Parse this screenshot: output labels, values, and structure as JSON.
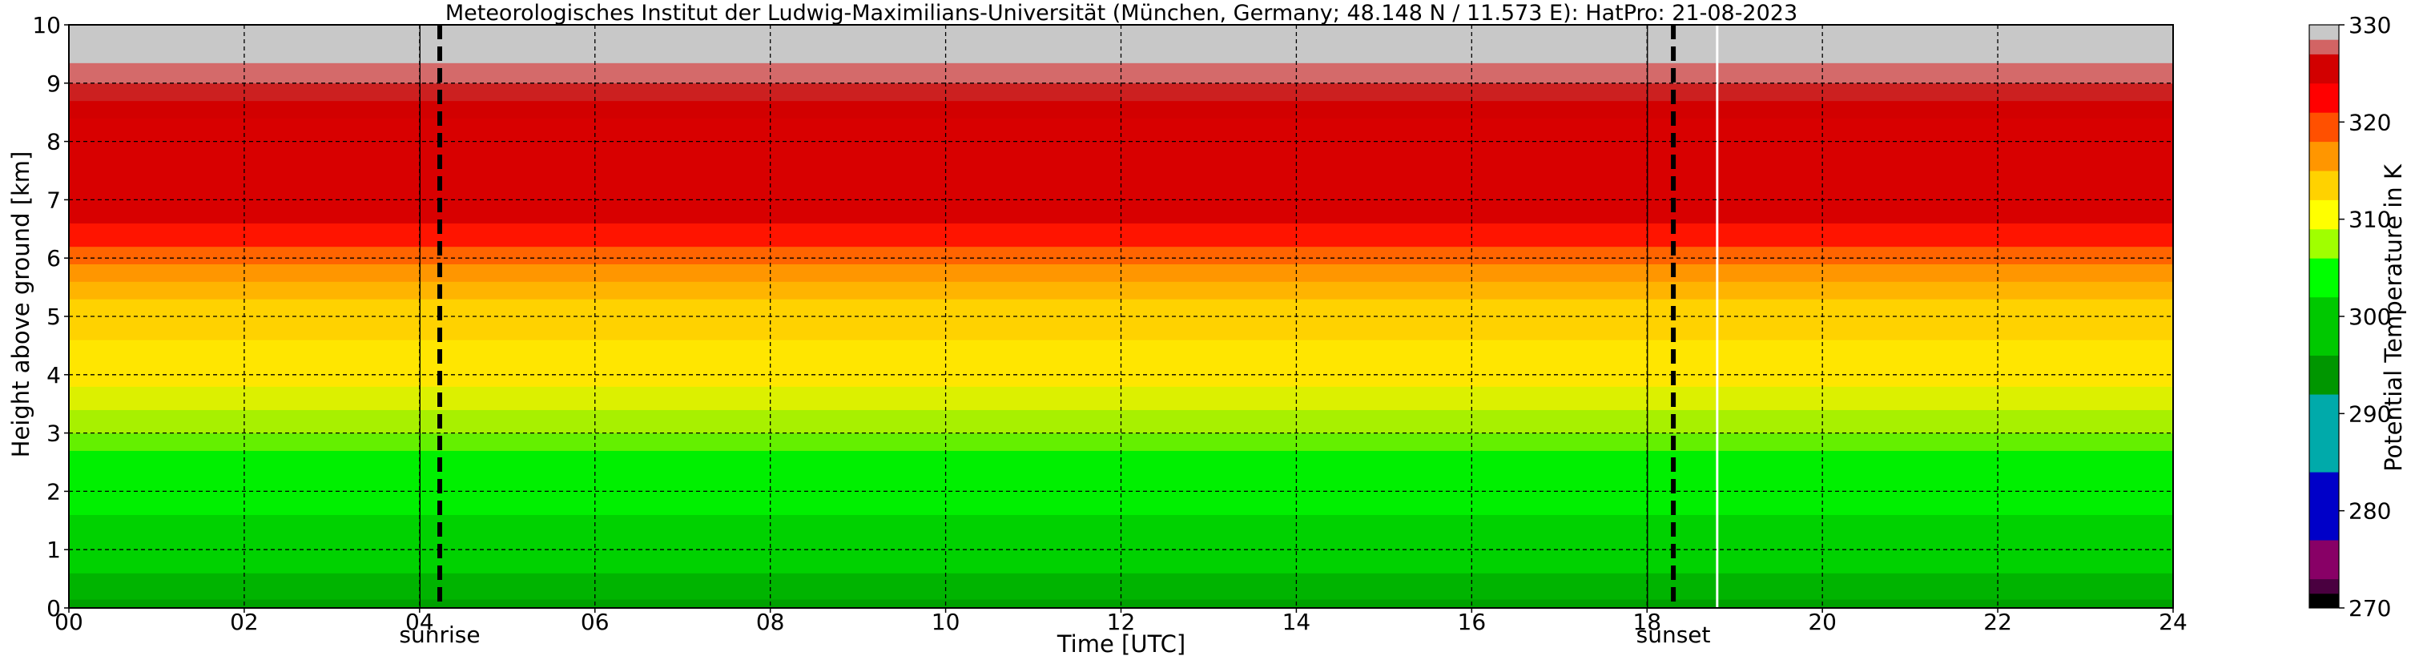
{
  "chart_data": {
    "type": "heatmap",
    "title": "Meteorologisches Institut der Ludwig-Maximilians-Universität (München, Germany; 48.148 N / 11.573 E):    HatPro: 21-08-2023",
    "xlabel": "Time [UTC]",
    "ylabel": "Height above ground [km]",
    "xlim": [
      0,
      24
    ],
    "ylim": [
      0,
      10
    ],
    "x_ticks": [
      0,
      2,
      4,
      6,
      8,
      10,
      12,
      14,
      16,
      18,
      20,
      22,
      24
    ],
    "x_tick_labels": [
      "00",
      "02",
      "04",
      "06",
      "08",
      "10",
      "12",
      "14",
      "16",
      "18",
      "20",
      "22",
      "24"
    ],
    "y_ticks": [
      0,
      1,
      2,
      3,
      4,
      5,
      6,
      7,
      8,
      9,
      10
    ],
    "y_tick_labels": [
      "0",
      "1",
      "2",
      "3",
      "4",
      "5",
      "6",
      "7",
      "8",
      "9",
      "10"
    ],
    "grid": true,
    "colorbar": {
      "label": "Potential Temperature in K",
      "range": [
        270,
        330
      ],
      "ticks": [
        270,
        280,
        290,
        300,
        310,
        320,
        330
      ],
      "tick_labels": [
        "270",
        "280",
        "290",
        "300",
        "310",
        "320",
        "330"
      ],
      "colors": [
        {
          "from": 270,
          "to": 271.5,
          "color": "#000000"
        },
        {
          "from": 271.5,
          "to": 273,
          "color": "#4a0040"
        },
        {
          "from": 273,
          "to": 277,
          "color": "#880066"
        },
        {
          "from": 277,
          "to": 284,
          "color": "#0000c8"
        },
        {
          "from": 284,
          "to": 292,
          "color": "#00aaaa"
        },
        {
          "from": 292,
          "to": 296,
          "color": "#009600"
        },
        {
          "from": 296,
          "to": 302,
          "color": "#00c800"
        },
        {
          "from": 302,
          "to": 306,
          "color": "#00ff00"
        },
        {
          "from": 306,
          "to": 309,
          "color": "#a0ff00"
        },
        {
          "from": 309,
          "to": 312,
          "color": "#ffff00"
        },
        {
          "from": 312,
          "to": 315,
          "color": "#ffd200"
        },
        {
          "from": 315,
          "to": 318,
          "color": "#ff9600"
        },
        {
          "from": 318,
          "to": 321,
          "color": "#ff5000"
        },
        {
          "from": 321,
          "to": 324,
          "color": "#ff0000"
        },
        {
          "from": 324,
          "to": 327,
          "color": "#d20000"
        },
        {
          "from": 327,
          "to": 328.5,
          "color": "#d26464"
        },
        {
          "from": 328.5,
          "to": 330,
          "color": "#c8c8c8"
        }
      ]
    },
    "profile": [
      {
        "from": 0.0,
        "to": 0.15,
        "value": 297,
        "color": "#00a000"
      },
      {
        "from": 0.15,
        "to": 0.6,
        "value": 299,
        "color": "#00b400"
      },
      {
        "from": 0.6,
        "to": 1.6,
        "value": 302,
        "color": "#00d200"
      },
      {
        "from": 1.6,
        "to": 2.7,
        "value": 305,
        "color": "#00f000"
      },
      {
        "from": 2.7,
        "to": 3.0,
        "value": 306.5,
        "color": "#64f000"
      },
      {
        "from": 3.0,
        "to": 3.4,
        "value": 307.5,
        "color": "#a8f000"
      },
      {
        "from": 3.4,
        "to": 3.8,
        "value": 309,
        "color": "#dcf000"
      },
      {
        "from": 3.8,
        "to": 4.6,
        "value": 311,
        "color": "#ffe600"
      },
      {
        "from": 4.6,
        "to": 5.3,
        "value": 313,
        "color": "#ffd200"
      },
      {
        "from": 5.3,
        "to": 5.6,
        "value": 315,
        "color": "#ffb400"
      },
      {
        "from": 5.6,
        "to": 5.9,
        "value": 317,
        "color": "#ff9600"
      },
      {
        "from": 5.9,
        "to": 6.2,
        "value": 319,
        "color": "#ff6400"
      },
      {
        "from": 6.2,
        "to": 6.6,
        "value": 322,
        "color": "#ff1400"
      },
      {
        "from": 6.6,
        "to": 8.4,
        "value": 325,
        "color": "#d80000"
      },
      {
        "from": 8.4,
        "to": 8.7,
        "value": 326,
        "color": "#d20000"
      },
      {
        "from": 8.7,
        "to": 9.0,
        "value": 327,
        "color": "#cc2020"
      },
      {
        "from": 9.0,
        "to": 9.35,
        "value": 328,
        "color": "#d46a6a"
      },
      {
        "from": 9.35,
        "to": 10.0,
        "value": 330,
        "color": "#c8c8c8"
      }
    ],
    "markers": [
      {
        "label": "sunrise",
        "x": 4.23
      },
      {
        "label": "sunset",
        "x": 18.3
      }
    ],
    "extra_solid_vlines": [
      4.0,
      18.0
    ],
    "data_gap_line": 18.8
  }
}
